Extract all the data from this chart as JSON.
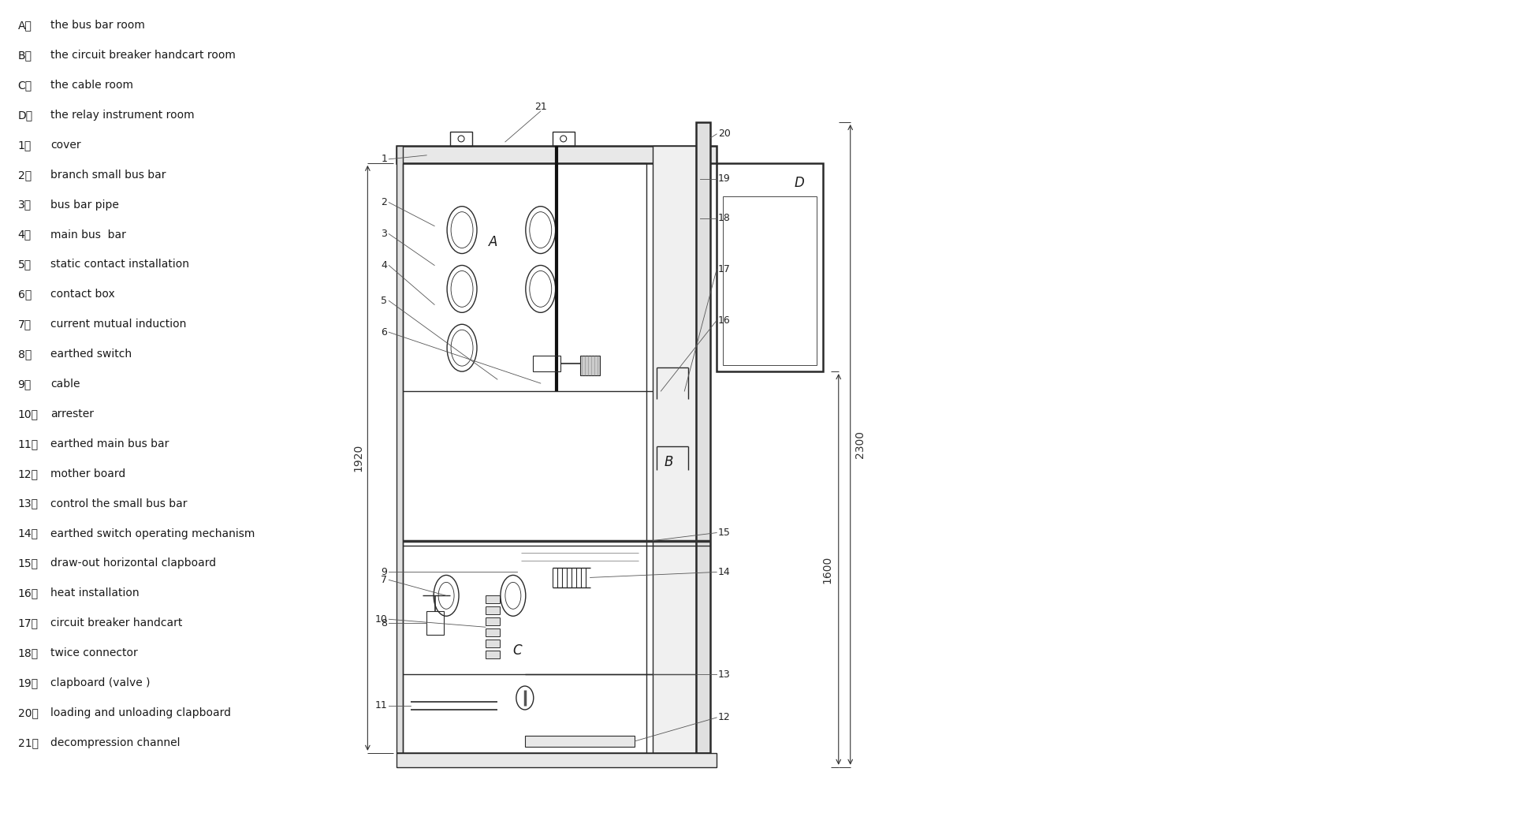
{
  "bg_color": "#ffffff",
  "line_color": "#2a2a2a",
  "text_color": "#1a1a1a",
  "legend_items": [
    [
      "A、",
      "the bus bar room"
    ],
    [
      "B、",
      "the circuit breaker handcart room"
    ],
    [
      "C、",
      "the cable room"
    ],
    [
      "D、",
      "the relay instrument room"
    ],
    [
      "1、",
      "cover"
    ],
    [
      "2、",
      "branch small bus bar"
    ],
    [
      "3、",
      "bus bar pipe"
    ],
    [
      "4、",
      "main bus  bar"
    ],
    [
      "5、",
      "static contact installation"
    ],
    [
      "6、",
      "contact box"
    ],
    [
      "7、",
      "current mutual induction"
    ],
    [
      "8、",
      "earthed switch"
    ],
    [
      "9、",
      "cable"
    ],
    [
      "10、",
      "arrester"
    ],
    [
      "11、",
      "earthed main bus bar"
    ],
    [
      "12、",
      "mother board"
    ],
    [
      "13、",
      "control the small bus bar"
    ],
    [
      "14、",
      "earthed switch operating mechanism"
    ],
    [
      "15、",
      "draw-out horizontal clapboard"
    ],
    [
      "16、",
      "heat installation"
    ],
    [
      "17、",
      "circuit breaker handcart"
    ],
    [
      "18、",
      "twice connector"
    ],
    [
      "19、",
      "clapboard (valve )"
    ],
    [
      "20、",
      "loading and unloading clapboard"
    ],
    [
      "21、",
      "decompression channel"
    ]
  ]
}
